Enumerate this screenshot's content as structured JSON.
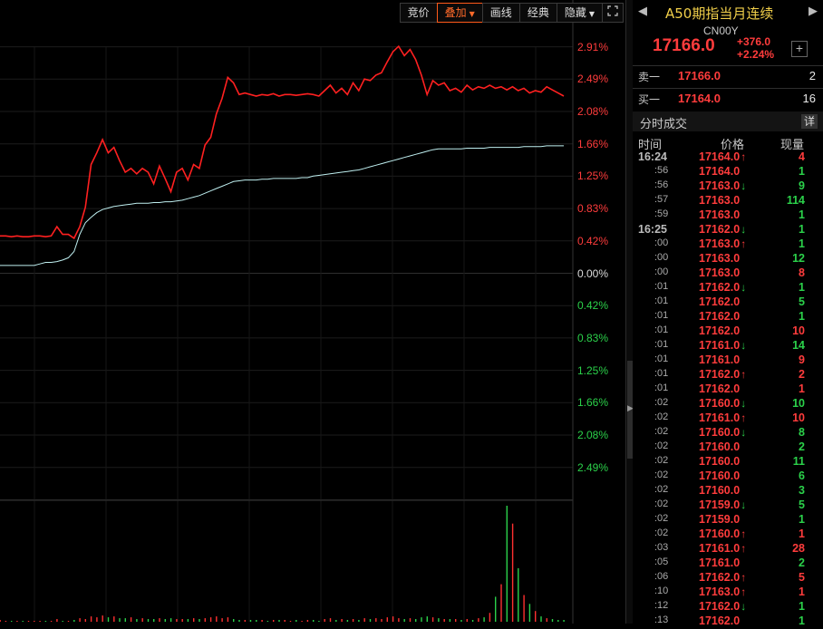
{
  "toolbar": {
    "buttons": [
      {
        "label": "竞价",
        "active": false
      },
      {
        "label": "叠加",
        "active": true,
        "dropdown": true
      },
      {
        "label": "画线",
        "active": false
      },
      {
        "label": "经典",
        "active": false
      },
      {
        "label": "隐藏",
        "active": false,
        "dropdown": true
      }
    ],
    "expand_icon": "fullscreen-icon"
  },
  "chart_data": {
    "type": "line",
    "percent_axis": {
      "up": [
        "2.91%",
        "2.49%",
        "2.08%",
        "1.66%",
        "1.25%",
        "0.83%",
        "0.42%"
      ],
      "zero": "0.00%",
      "down": [
        "0.42%",
        "0.83%",
        "1.25%",
        "1.66%",
        "2.08%",
        "2.49%"
      ]
    },
    "ylim_pct": [
      -2.91,
      2.91
    ],
    "x_count": 100,
    "series": [
      {
        "color": "#ff2020",
        "values": [
          0.48,
          0.48,
          0.47,
          0.48,
          0.47,
          0.47,
          0.48,
          0.48,
          0.47,
          0.48,
          0.6,
          0.5,
          0.5,
          0.45,
          0.6,
          0.85,
          1.4,
          1.55,
          1.72,
          1.55,
          1.62,
          1.45,
          1.3,
          1.35,
          1.28,
          1.35,
          1.3,
          1.15,
          1.38,
          1.22,
          1.05,
          1.3,
          1.35,
          1.2,
          1.4,
          1.35,
          1.65,
          1.75,
          2.05,
          2.25,
          2.52,
          2.45,
          2.3,
          2.32,
          2.3,
          2.28,
          2.3,
          2.29,
          2.31,
          2.28,
          2.3,
          2.3,
          2.29,
          2.3,
          2.31,
          2.3,
          2.28,
          2.35,
          2.42,
          2.32,
          2.38,
          2.3,
          2.45,
          2.35,
          2.5,
          2.48,
          2.55,
          2.58,
          2.72,
          2.85,
          2.92,
          2.8,
          2.88,
          2.75,
          2.55,
          2.3,
          2.48,
          2.42,
          2.45,
          2.35,
          2.38,
          2.33,
          2.42,
          2.36,
          2.4,
          2.38,
          2.42,
          2.38,
          2.4,
          2.36,
          2.4,
          2.35,
          2.38,
          2.32,
          2.35,
          2.33,
          2.4,
          2.36,
          2.32,
          2.28
        ]
      },
      {
        "color": "#bfeff0",
        "values": [
          0.1,
          0.1,
          0.1,
          0.1,
          0.1,
          0.1,
          0.1,
          0.12,
          0.14,
          0.14,
          0.15,
          0.17,
          0.2,
          0.28,
          0.5,
          0.65,
          0.72,
          0.78,
          0.82,
          0.84,
          0.86,
          0.87,
          0.88,
          0.89,
          0.9,
          0.9,
          0.9,
          0.91,
          0.91,
          0.92,
          0.92,
          0.93,
          0.94,
          0.96,
          0.98,
          1.0,
          1.03,
          1.06,
          1.09,
          1.12,
          1.15,
          1.18,
          1.19,
          1.2,
          1.2,
          1.2,
          1.21,
          1.21,
          1.22,
          1.22,
          1.22,
          1.22,
          1.22,
          1.23,
          1.23,
          1.25,
          1.26,
          1.27,
          1.28,
          1.29,
          1.3,
          1.31,
          1.32,
          1.33,
          1.35,
          1.37,
          1.39,
          1.41,
          1.43,
          1.45,
          1.47,
          1.49,
          1.51,
          1.53,
          1.55,
          1.57,
          1.59,
          1.6,
          1.6,
          1.6,
          1.6,
          1.6,
          1.61,
          1.61,
          1.61,
          1.61,
          1.62,
          1.62,
          1.62,
          1.62,
          1.62,
          1.62,
          1.63,
          1.63,
          1.63,
          1.63,
          1.64,
          1.64,
          1.64,
          1.64
        ]
      }
    ],
    "volume": [
      2,
      1,
      1,
      1,
      1,
      1,
      1,
      1,
      1,
      1,
      3,
      1,
      1,
      2,
      4,
      3,
      6,
      5,
      7,
      5,
      6,
      4,
      4,
      5,
      3,
      4,
      3,
      3,
      4,
      3,
      4,
      3,
      3,
      3,
      4,
      3,
      4,
      5,
      6,
      4,
      5,
      3,
      2,
      2,
      2,
      2,
      2,
      1,
      2,
      2,
      2,
      1,
      2,
      1,
      2,
      2,
      1,
      3,
      4,
      2,
      3,
      2,
      3,
      2,
      4,
      3,
      4,
      3,
      5,
      6,
      4,
      3,
      4,
      3,
      5,
      6,
      5,
      4,
      3,
      3,
      3,
      2,
      3,
      2,
      4,
      5,
      10,
      28,
      42,
      130,
      110,
      60,
      30,
      20,
      12,
      6,
      4,
      3,
      2,
      2
    ]
  },
  "panel": {
    "title": "A50期指当月连续",
    "code": "CN00Y",
    "price": "17166.0",
    "change": "+376.0",
    "change_pct": "+2.24%",
    "ask": {
      "label": "卖一",
      "price": "17166.0",
      "volume": "2"
    },
    "bid": {
      "label": "买一",
      "price": "17164.0",
      "volume": "16"
    },
    "ticks_title": "分时成交",
    "detail_label": "详",
    "columns": {
      "time": "时间",
      "price": "价格",
      "volume": "现量"
    },
    "ticks": [
      {
        "time": "16:24",
        "price": "17164.0",
        "dir": "up",
        "vol": "4",
        "vdir": "up"
      },
      {
        "time": ":56",
        "price": "17164.0",
        "dir": "",
        "vol": "1",
        "vdir": "down"
      },
      {
        "time": ":56",
        "price": "17163.0",
        "dir": "down",
        "vol": "9",
        "vdir": "down"
      },
      {
        "time": ":57",
        "price": "17163.0",
        "dir": "",
        "vol": "114",
        "vdir": "down"
      },
      {
        "time": ":59",
        "price": "17163.0",
        "dir": "",
        "vol": "1",
        "vdir": "down"
      },
      {
        "time": "16:25",
        "price": "17162.0",
        "dir": "down",
        "vol": "1",
        "vdir": "down"
      },
      {
        "time": ":00",
        "price": "17163.0",
        "dir": "up",
        "vol": "1",
        "vdir": "down"
      },
      {
        "time": ":00",
        "price": "17163.0",
        "dir": "",
        "vol": "12",
        "vdir": "down"
      },
      {
        "time": ":00",
        "price": "17163.0",
        "dir": "",
        "vol": "8",
        "vdir": "up"
      },
      {
        "time": ":01",
        "price": "17162.0",
        "dir": "down",
        "vol": "1",
        "vdir": "down"
      },
      {
        "time": ":01",
        "price": "17162.0",
        "dir": "",
        "vol": "5",
        "vdir": "down"
      },
      {
        "time": ":01",
        "price": "17162.0",
        "dir": "",
        "vol": "1",
        "vdir": "down"
      },
      {
        "time": ":01",
        "price": "17162.0",
        "dir": "",
        "vol": "10",
        "vdir": "up"
      },
      {
        "time": ":01",
        "price": "17161.0",
        "dir": "down",
        "vol": "14",
        "vdir": "down"
      },
      {
        "time": ":01",
        "price": "17161.0",
        "dir": "",
        "vol": "9",
        "vdir": "up"
      },
      {
        "time": ":01",
        "price": "17162.0",
        "dir": "up",
        "vol": "2",
        "vdir": "up"
      },
      {
        "time": ":01",
        "price": "17162.0",
        "dir": "",
        "vol": "1",
        "vdir": "up"
      },
      {
        "time": ":02",
        "price": "17160.0",
        "dir": "down",
        "vol": "10",
        "vdir": "down"
      },
      {
        "time": ":02",
        "price": "17161.0",
        "dir": "up",
        "vol": "10",
        "vdir": "up"
      },
      {
        "time": ":02",
        "price": "17160.0",
        "dir": "down",
        "vol": "8",
        "vdir": "down"
      },
      {
        "time": ":02",
        "price": "17160.0",
        "dir": "",
        "vol": "2",
        "vdir": "down"
      },
      {
        "time": ":02",
        "price": "17160.0",
        "dir": "",
        "vol": "11",
        "vdir": "down"
      },
      {
        "time": ":02",
        "price": "17160.0",
        "dir": "",
        "vol": "6",
        "vdir": "down"
      },
      {
        "time": ":02",
        "price": "17160.0",
        "dir": "",
        "vol": "3",
        "vdir": "down"
      },
      {
        "time": ":02",
        "price": "17159.0",
        "dir": "down",
        "vol": "5",
        "vdir": "down"
      },
      {
        "time": ":02",
        "price": "17159.0",
        "dir": "",
        "vol": "1",
        "vdir": "down"
      },
      {
        "time": ":02",
        "price": "17160.0",
        "dir": "up",
        "vol": "1",
        "vdir": "up"
      },
      {
        "time": ":03",
        "price": "17161.0",
        "dir": "up",
        "vol": "28",
        "vdir": "up"
      },
      {
        "time": ":05",
        "price": "17161.0",
        "dir": "",
        "vol": "2",
        "vdir": "down"
      },
      {
        "time": ":06",
        "price": "17162.0",
        "dir": "up",
        "vol": "5",
        "vdir": "up"
      },
      {
        "time": ":10",
        "price": "17163.0",
        "dir": "up",
        "vol": "1",
        "vdir": "up"
      },
      {
        "time": ":12",
        "price": "17162.0",
        "dir": "down",
        "vol": "1",
        "vdir": "down"
      },
      {
        "time": ":13",
        "price": "17162.0",
        "dir": "",
        "vol": "1",
        "vdir": "down"
      }
    ]
  }
}
